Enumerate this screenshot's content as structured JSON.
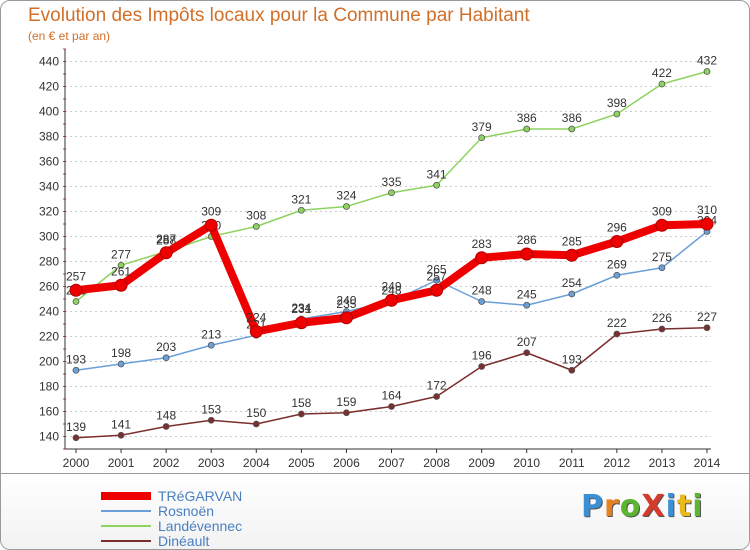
{
  "chart_data": {
    "type": "line",
    "title": "Evolution des Impôts locaux pour la Commune par Habitant",
    "subtitle": "(en € et par an)",
    "xlabel": "",
    "ylabel": "",
    "x": [
      "2000",
      "2001",
      "2002",
      "2003",
      "2004",
      "2005",
      "2006",
      "2007",
      "2008",
      "2009",
      "2010",
      "2011",
      "2012",
      "2013",
      "2014"
    ],
    "ylim": [
      130,
      450
    ],
    "yticks": [
      140,
      160,
      180,
      200,
      220,
      240,
      260,
      280,
      300,
      320,
      340,
      360,
      380,
      400,
      420,
      440
    ],
    "grid": "horizontal dashed",
    "legend_position": "bottom-left",
    "series": [
      {
        "name": "Landévennec",
        "color": "#8dd35f",
        "values": [
          248,
          277,
          288,
          300,
          308,
          321,
          324,
          335,
          341,
          379,
          386,
          386,
          398,
          422,
          432
        ]
      },
      {
        "name": "Rosnoën",
        "color": "#6a9fd8",
        "values": [
          193,
          198,
          203,
          213,
          221,
          234,
          240,
          248,
          265,
          248,
          245,
          254,
          269,
          275,
          304
        ]
      },
      {
        "name": "Dinéault",
        "color": "#7b2e2e",
        "values": [
          139,
          141,
          148,
          153,
          150,
          158,
          159,
          164,
          172,
          196,
          207,
          193,
          222,
          226,
          227
        ]
      },
      {
        "name": "TRéGARVAN",
        "color": "#ee0000",
        "values": [
          257,
          261,
          287,
          309,
          224,
          231,
          235,
          249,
          257,
          283,
          286,
          285,
          296,
          309,
          310
        ]
      }
    ],
    "legend": [
      "TRéGARVAN",
      "Rosnoën",
      "Landévennec",
      "Dinéault"
    ]
  },
  "logo": {
    "text": "ProXiti",
    "colors": [
      "#3b8fd4",
      "#e8821e",
      "#5cb531",
      "#d63a2a",
      "#3b8fd4",
      "#e8b81e",
      "#5cb531"
    ]
  }
}
